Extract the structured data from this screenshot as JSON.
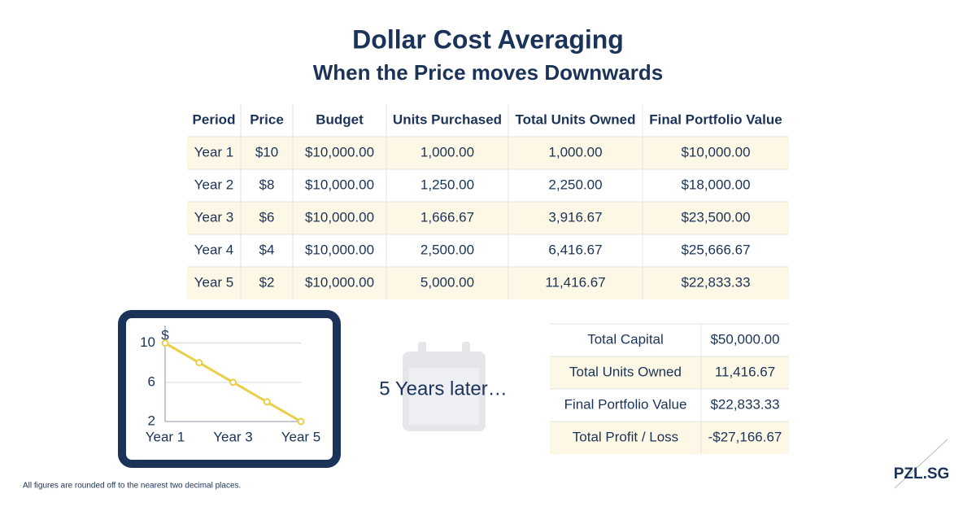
{
  "header": {
    "title": "Dollar Cost Averaging",
    "subtitle": "When the Price moves Downwards"
  },
  "table": {
    "columns": [
      "Period",
      "Price",
      "Budget",
      "Units Purchased",
      "Total Units Owned",
      "Final Portfolio Value"
    ],
    "rows": [
      [
        "Year 1",
        "$10",
        "$10,000.00",
        "1,000.00",
        "1,000.00",
        "$10,000.00"
      ],
      [
        "Year 2",
        "$8",
        "$10,000.00",
        "1,250.00",
        "2,250.00",
        "$18,000.00"
      ],
      [
        "Year 3",
        "$6",
        "$10,000.00",
        "1,666.67",
        "3,916.67",
        "$23,500.00"
      ],
      [
        "Year 4",
        "$4",
        "$10,000.00",
        "2,500.00",
        "6,416.67",
        "$25,666.67"
      ],
      [
        "Year 5",
        "$2",
        "$10,000.00",
        "5,000.00",
        "11,416.67",
        "$22,833.33"
      ]
    ]
  },
  "chart_data": {
    "type": "line",
    "y_label": "$",
    "categories": [
      "Year 1",
      null,
      "Year 3",
      null,
      "Year 5"
    ],
    "values": [
      10,
      8,
      6,
      4,
      2
    ],
    "color": "#e8cf4a",
    "ylim": [
      2,
      11.8
    ],
    "yticks": [
      2,
      6,
      10
    ],
    "grid": true
  },
  "caption": "5 Years later…",
  "summary": {
    "rows": [
      [
        "Total Capital",
        "$50,000.00"
      ],
      [
        "Total Units Owned",
        "11,416.67"
      ],
      [
        "Final Portfolio Value",
        "$22,833.33"
      ],
      [
        "Total Profit / Loss",
        "-$27,166.67"
      ]
    ]
  },
  "footnote": "All figures are rounded off to the nearest two decimal places.",
  "logo": "PZL.SG"
}
